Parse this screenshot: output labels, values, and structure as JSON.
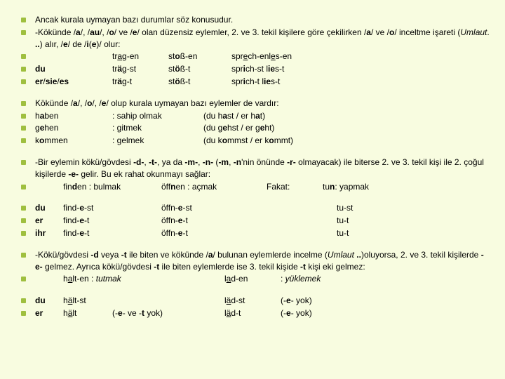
{
  "s1": {
    "r1": "Ancak kurala uymayan bazı durumlar söz konusudur.",
    "r2": "-Kökünde /<b>a</b>/, /<b>au</b>/, /<b>o</b>/ ve /<b>e</b>/ olan düzensiz eylemler, 2. ve 3. tekil kişilere göre çekilirken /<b>a</b>/ ve /<b>o</b>/ inceltme işareti (<i>Umlaut</i>. <b>..</b>) alır,  /<b>e</b>/ de /<b>i</b>(<b>e</b>)/ olur:",
    "t": [
      [
        "",
        "tr<u>a</u>g-en",
        "st<b>o</b>ß-en",
        "spr<u>e</u>ch-enl<u>e</u>s-en"
      ],
      [
        "<b>du</b>",
        "tr<b>ä</b>g-st",
        "st<b>ö</b>ß-t",
        "spr<b>i</b>ch-st  l<b>ie</b>s-t"
      ],
      [
        "<b>er</b>/<b>sie</b>/<b>es</b>",
        "tr<b>ä</b>g-t",
        "st<b>ö</b>ß-t",
        "spr<b>i</b>ch-t   l<b>ie</b>s-t"
      ]
    ]
  },
  "s2": {
    "r1": "Kökünde /<b>a</b>/, /<b>o</b>/, /<b>e</b>/ olup kurala uymayan bazı eylemler de vardır:",
    "rows": [
      [
        "h<b>a</b>ben",
        ": sahip olmak",
        "(du h<b>a</b>st / er h<b>a</b>t)"
      ],
      [
        "g<b>e</b>hen",
        ": gitmek",
        "(du g<b>e</b>hst / er g<b>e</b>ht)"
      ],
      [
        "k<b>o</b>mmen",
        ": gelmek",
        "(du k<b>o</b>mmst / er k<b>o</b>mmt)"
      ]
    ]
  },
  "s3": {
    "r1": "-Bir eylemin kökü/gövdesi <b>-d-</b>, <b>-t-</b>, ya da <b>-m-</b>, <b>-n-</b> (<b>-m</b>, <b>-n</b>'nin önünde <b>-r-</b> olmayacak) ile biterse 2. ve 3. tekil kişi ile 2. çoğul kişilerde <b>-e-</b> gelir. Bu ek rahat okunmayı sağlar:",
    "r2": [
      "fin<b>d</b>en : bulmak",
      "öff<b>n</b>en  : açmak",
      "Fakat:",
      "tu<b>n</b>: yapmak"
    ]
  },
  "s4": {
    "rows": [
      [
        "<b>du</b>",
        "find-<b>e</b>-st",
        "öffn-<b>e</b>-st",
        "tu-st"
      ],
      [
        "<b>er</b>",
        "find-<b>e</b>-t",
        "öffn-<b>e</b>-t",
        "tu-t"
      ],
      [
        "<b>ihr</b>",
        "find-<b>e</b>-t",
        "öffn-<b>e</b>-t",
        "tu-t"
      ]
    ]
  },
  "s5": {
    "r1": "-Kökü/gövdesi <b>-d</b> veya <b>-t</b> ile biten ve kökünde /<b>a</b>/ bulunan eylemlerde incelme (<i>Umlaut</i> <b>..</b>)oluyorsa, 2. ve 3. tekil kişilerde <b>-e-</b> gelmez. Ayrıca kökü/gövdesi <b>-t</b> ile biten eylemlerde ise 3. tekil kişide <b>-t</b> kişi eki gelmez:",
    "r2": [
      "h<u>a</u>lt-en : <i>tutmak</i>",
      "l<u>a</u>d-en",
      ": <i>yüklemek</i>"
    ]
  },
  "s6": {
    "rows": [
      [
        "<b>du</b>",
        "h<u>ä</u>lt-st",
        "",
        "l<u>ä</u>d-st",
        "(-<b>e</b>- yok)"
      ],
      [
        "<b>er</b>",
        "h<u>ä</u>lt",
        "(-<b>e</b>- ve -<b>t</b> yok)",
        "l<u>ä</u>d-t",
        "(-<b>e</b>- yok)"
      ]
    ]
  }
}
